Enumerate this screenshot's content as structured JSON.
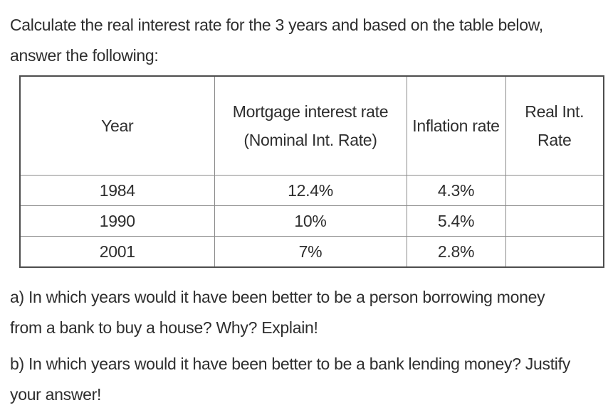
{
  "document": {
    "intro": "Calculate the real interest rate for the 3 years and based on the table below,\nanswer the following:",
    "question_a": "a) In which years would it have been better to be a person borrowing money\nfrom a bank to buy a house? Why? Explain!",
    "question_b": "b) In which years would it have been better to be a bank lending money? Justify\nyour answer!"
  },
  "table": {
    "headers": {
      "year": "Year",
      "nominal": "Mortgage interest rate (Nominal Int. Rate)",
      "inflation": "Inflation rate",
      "real": "Real Int. Rate"
    },
    "rows": [
      {
        "year": "1984",
        "nominal": "12.4%",
        "inflation": "4.3%",
        "real": ""
      },
      {
        "year": "1990",
        "nominal": "10%",
        "inflation": "5.4%",
        "real": ""
      },
      {
        "year": "2001",
        "nominal": "7%",
        "inflation": "2.8%",
        "real": ""
      }
    ]
  },
  "colors": {
    "text": "#2e2e2e",
    "table_border_outer": "#4d4d4d",
    "table_border_inner": "#8a8a8a",
    "background": "#ffffff"
  }
}
